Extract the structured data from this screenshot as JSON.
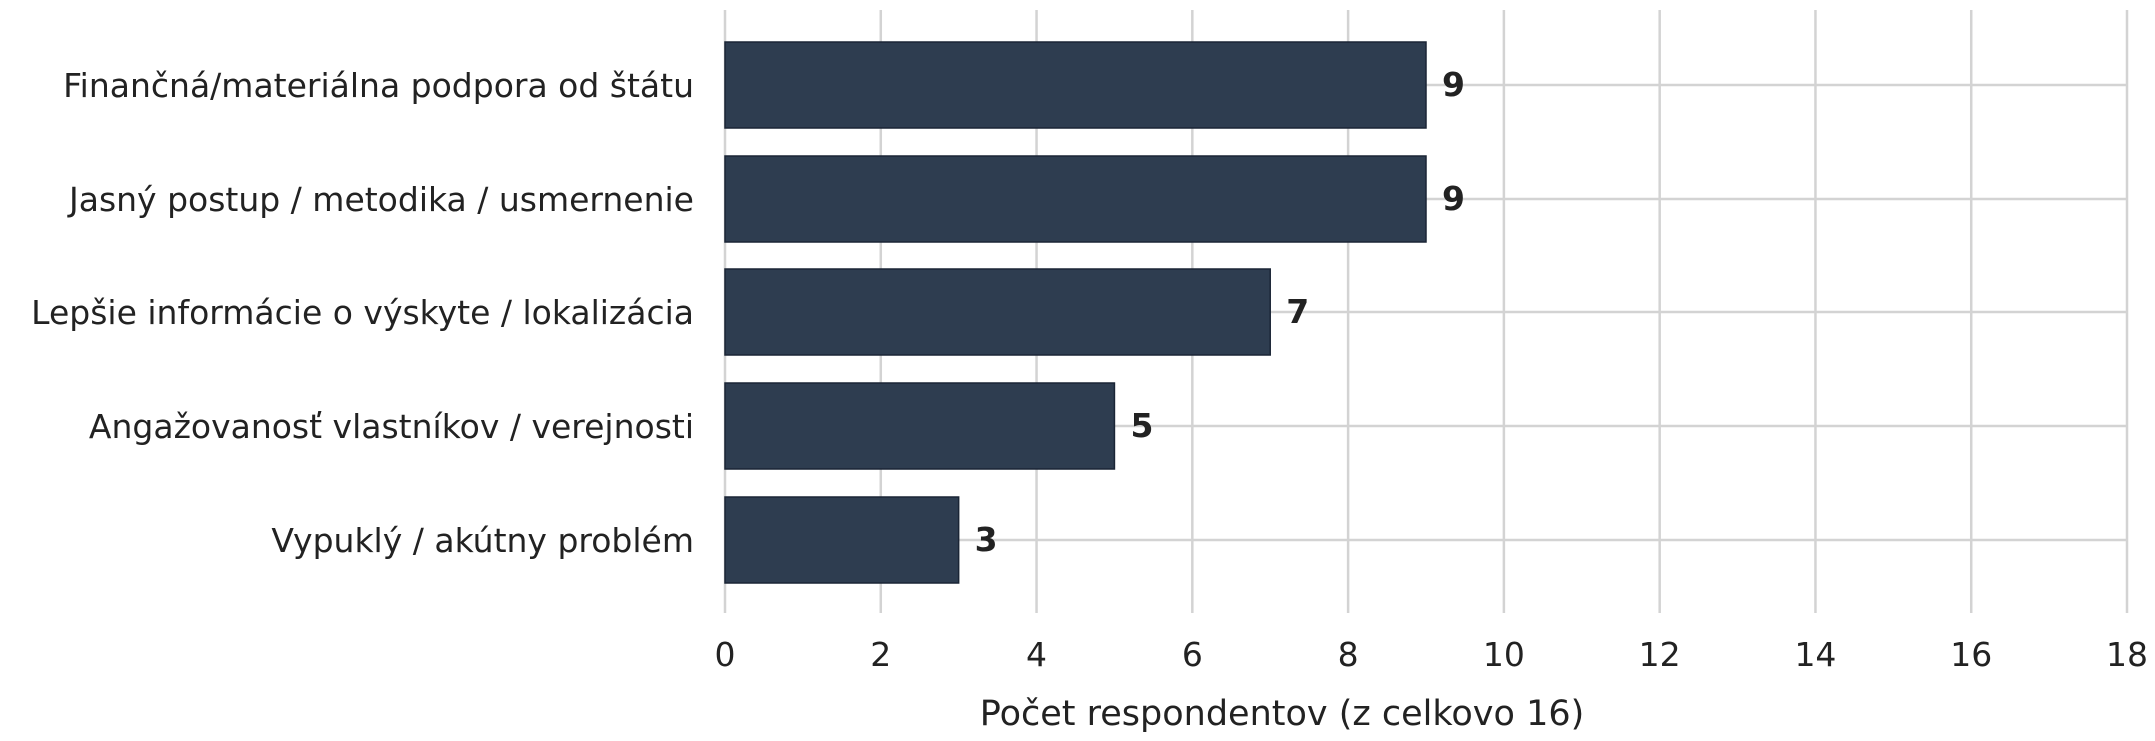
{
  "chart_data": {
    "type": "bar",
    "orientation": "horizontal",
    "categories": [
      "Finančná/materiálna podpora od štátu",
      "Jasný postup / metodika / usmernenie",
      "Lepšie informácie o výskyte / lokalizácia",
      "Angažovanosť vlastníkov / verejnosti",
      "Vypuklý / akútny problém"
    ],
    "values": [
      9,
      9,
      7,
      5,
      3
    ],
    "data_labels": [
      "9",
      "9",
      "7",
      "5",
      "3"
    ],
    "xlabel": "Počet respondentov (z celkovo 16)",
    "ylabel": "",
    "title": "",
    "xlim": [
      0,
      18
    ],
    "xticks": [
      "0",
      "2",
      "4",
      "6",
      "8",
      "10",
      "12",
      "14",
      "16",
      "18"
    ],
    "grid": true,
    "bar_color": "#2e3d50"
  }
}
